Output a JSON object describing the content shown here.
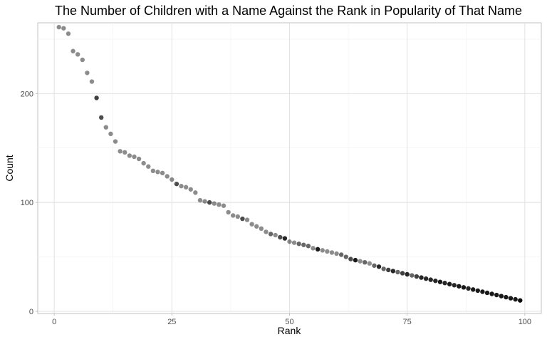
{
  "chart_data": {
    "type": "scatter",
    "title": "The Number of Children with a Name Against the Rank in Popularity of That Name",
    "xlabel": "Rank",
    "ylabel": "Count",
    "xlim": [
      -3.5,
      103.5
    ],
    "ylim": [
      -2,
      265
    ],
    "x_ticks": [
      0,
      25,
      50,
      75,
      100
    ],
    "y_ticks": [
      0,
      100,
      200
    ],
    "x_tick_labels": [
      "0",
      "25",
      "50",
      "75",
      "100"
    ],
    "y_tick_labels": [
      "0",
      "100",
      "200"
    ],
    "grid": true,
    "theme": "light",
    "point_color": "#000000",
    "points": [
      {
        "x": 1,
        "y": 261,
        "a": 0.45
      },
      {
        "x": 2,
        "y": 260,
        "a": 0.45
      },
      {
        "x": 3,
        "y": 255,
        "a": 0.45
      },
      {
        "x": 4,
        "y": 239,
        "a": 0.45
      },
      {
        "x": 5,
        "y": 236,
        "a": 0.45
      },
      {
        "x": 6,
        "y": 231,
        "a": 0.45
      },
      {
        "x": 7,
        "y": 219,
        "a": 0.45
      },
      {
        "x": 8,
        "y": 211,
        "a": 0.45
      },
      {
        "x": 9,
        "y": 196,
        "a": 0.75
      },
      {
        "x": 10,
        "y": 178,
        "a": 0.7
      },
      {
        "x": 11,
        "y": 169,
        "a": 0.45
      },
      {
        "x": 12,
        "y": 163,
        "a": 0.45
      },
      {
        "x": 13,
        "y": 156,
        "a": 0.45
      },
      {
        "x": 14,
        "y": 147,
        "a": 0.45
      },
      {
        "x": 15,
        "y": 146,
        "a": 0.45
      },
      {
        "x": 16,
        "y": 143,
        "a": 0.45
      },
      {
        "x": 17,
        "y": 142,
        "a": 0.45
      },
      {
        "x": 18,
        "y": 140,
        "a": 0.45
      },
      {
        "x": 19,
        "y": 136,
        "a": 0.45
      },
      {
        "x": 20,
        "y": 133,
        "a": 0.45
      },
      {
        "x": 21,
        "y": 129,
        "a": 0.45
      },
      {
        "x": 22,
        "y": 128,
        "a": 0.45
      },
      {
        "x": 23,
        "y": 127,
        "a": 0.45
      },
      {
        "x": 24,
        "y": 124,
        "a": 0.45
      },
      {
        "x": 25,
        "y": 121,
        "a": 0.45
      },
      {
        "x": 26,
        "y": 117,
        "a": 0.7
      },
      {
        "x": 27,
        "y": 115,
        "a": 0.45
      },
      {
        "x": 28,
        "y": 114,
        "a": 0.45
      },
      {
        "x": 29,
        "y": 112,
        "a": 0.45
      },
      {
        "x": 30,
        "y": 109,
        "a": 0.45
      },
      {
        "x": 31,
        "y": 102,
        "a": 0.45
      },
      {
        "x": 32,
        "y": 101,
        "a": 0.45
      },
      {
        "x": 33,
        "y": 100,
        "a": 0.7
      },
      {
        "x": 34,
        "y": 99,
        "a": 0.45
      },
      {
        "x": 35,
        "y": 98,
        "a": 0.45
      },
      {
        "x": 36,
        "y": 97,
        "a": 0.45
      },
      {
        "x": 37,
        "y": 91,
        "a": 0.45
      },
      {
        "x": 38,
        "y": 88,
        "a": 0.45
      },
      {
        "x": 39,
        "y": 87,
        "a": 0.45
      },
      {
        "x": 40,
        "y": 85,
        "a": 0.7
      },
      {
        "x": 41,
        "y": 84,
        "a": 0.45
      },
      {
        "x": 42,
        "y": 80,
        "a": 0.45
      },
      {
        "x": 43,
        "y": 78,
        "a": 0.45
      },
      {
        "x": 44,
        "y": 76,
        "a": 0.45
      },
      {
        "x": 45,
        "y": 73,
        "a": 0.45
      },
      {
        "x": 46,
        "y": 71,
        "a": 0.6
      },
      {
        "x": 47,
        "y": 70,
        "a": 0.45
      },
      {
        "x": 48,
        "y": 68,
        "a": 0.7
      },
      {
        "x": 49,
        "y": 67,
        "a": 0.85
      },
      {
        "x": 50,
        "y": 64,
        "a": 0.45
      },
      {
        "x": 51,
        "y": 63,
        "a": 0.45
      },
      {
        "x": 52,
        "y": 62,
        "a": 0.6
      },
      {
        "x": 53,
        "y": 61,
        "a": 0.6
      },
      {
        "x": 54,
        "y": 60,
        "a": 0.6
      },
      {
        "x": 55,
        "y": 58,
        "a": 0.45
      },
      {
        "x": 56,
        "y": 57,
        "a": 0.9
      },
      {
        "x": 57,
        "y": 56,
        "a": 0.45
      },
      {
        "x": 58,
        "y": 55,
        "a": 0.45
      },
      {
        "x": 59,
        "y": 54,
        "a": 0.45
      },
      {
        "x": 60,
        "y": 53,
        "a": 0.45
      },
      {
        "x": 61,
        "y": 52,
        "a": 0.6
      },
      {
        "x": 62,
        "y": 50,
        "a": 0.6
      },
      {
        "x": 63,
        "y": 48,
        "a": 0.7
      },
      {
        "x": 64,
        "y": 47,
        "a": 0.9
      },
      {
        "x": 65,
        "y": 46,
        "a": 0.45
      },
      {
        "x": 66,
        "y": 45,
        "a": 0.6
      },
      {
        "x": 67,
        "y": 44,
        "a": 0.45
      },
      {
        "x": 68,
        "y": 42,
        "a": 0.6
      },
      {
        "x": 69,
        "y": 41,
        "a": 0.85
      },
      {
        "x": 70,
        "y": 39,
        "a": 0.6
      },
      {
        "x": 71,
        "y": 38,
        "a": 0.75
      },
      {
        "x": 72,
        "y": 37,
        "a": 0.85
      },
      {
        "x": 73,
        "y": 36,
        "a": 0.6
      },
      {
        "x": 74,
        "y": 35,
        "a": 0.75
      },
      {
        "x": 75,
        "y": 34,
        "a": 0.85
      },
      {
        "x": 76,
        "y": 33,
        "a": 0.6
      },
      {
        "x": 77,
        "y": 32,
        "a": 0.75
      },
      {
        "x": 78,
        "y": 31,
        "a": 0.85
      },
      {
        "x": 79,
        "y": 30,
        "a": 0.85
      },
      {
        "x": 80,
        "y": 29,
        "a": 0.85
      },
      {
        "x": 81,
        "y": 28,
        "a": 0.85
      },
      {
        "x": 82,
        "y": 27,
        "a": 0.9
      },
      {
        "x": 83,
        "y": 26,
        "a": 0.85
      },
      {
        "x": 84,
        "y": 25,
        "a": 0.9
      },
      {
        "x": 85,
        "y": 24,
        "a": 0.85
      },
      {
        "x": 86,
        "y": 23,
        "a": 0.9
      },
      {
        "x": 87,
        "y": 22,
        "a": 0.9
      },
      {
        "x": 88,
        "y": 21,
        "a": 0.85
      },
      {
        "x": 89,
        "y": 20,
        "a": 0.9
      },
      {
        "x": 90,
        "y": 19,
        "a": 0.9
      },
      {
        "x": 91,
        "y": 18,
        "a": 0.9
      },
      {
        "x": 92,
        "y": 17,
        "a": 0.9
      },
      {
        "x": 93,
        "y": 16,
        "a": 0.9
      },
      {
        "x": 94,
        "y": 15,
        "a": 0.9
      },
      {
        "x": 95,
        "y": 14,
        "a": 0.9
      },
      {
        "x": 96,
        "y": 13,
        "a": 0.9
      },
      {
        "x": 97,
        "y": 12,
        "a": 0.9
      },
      {
        "x": 98,
        "y": 11,
        "a": 0.9
      },
      {
        "x": 99,
        "y": 10,
        "a": 0.95
      }
    ]
  }
}
